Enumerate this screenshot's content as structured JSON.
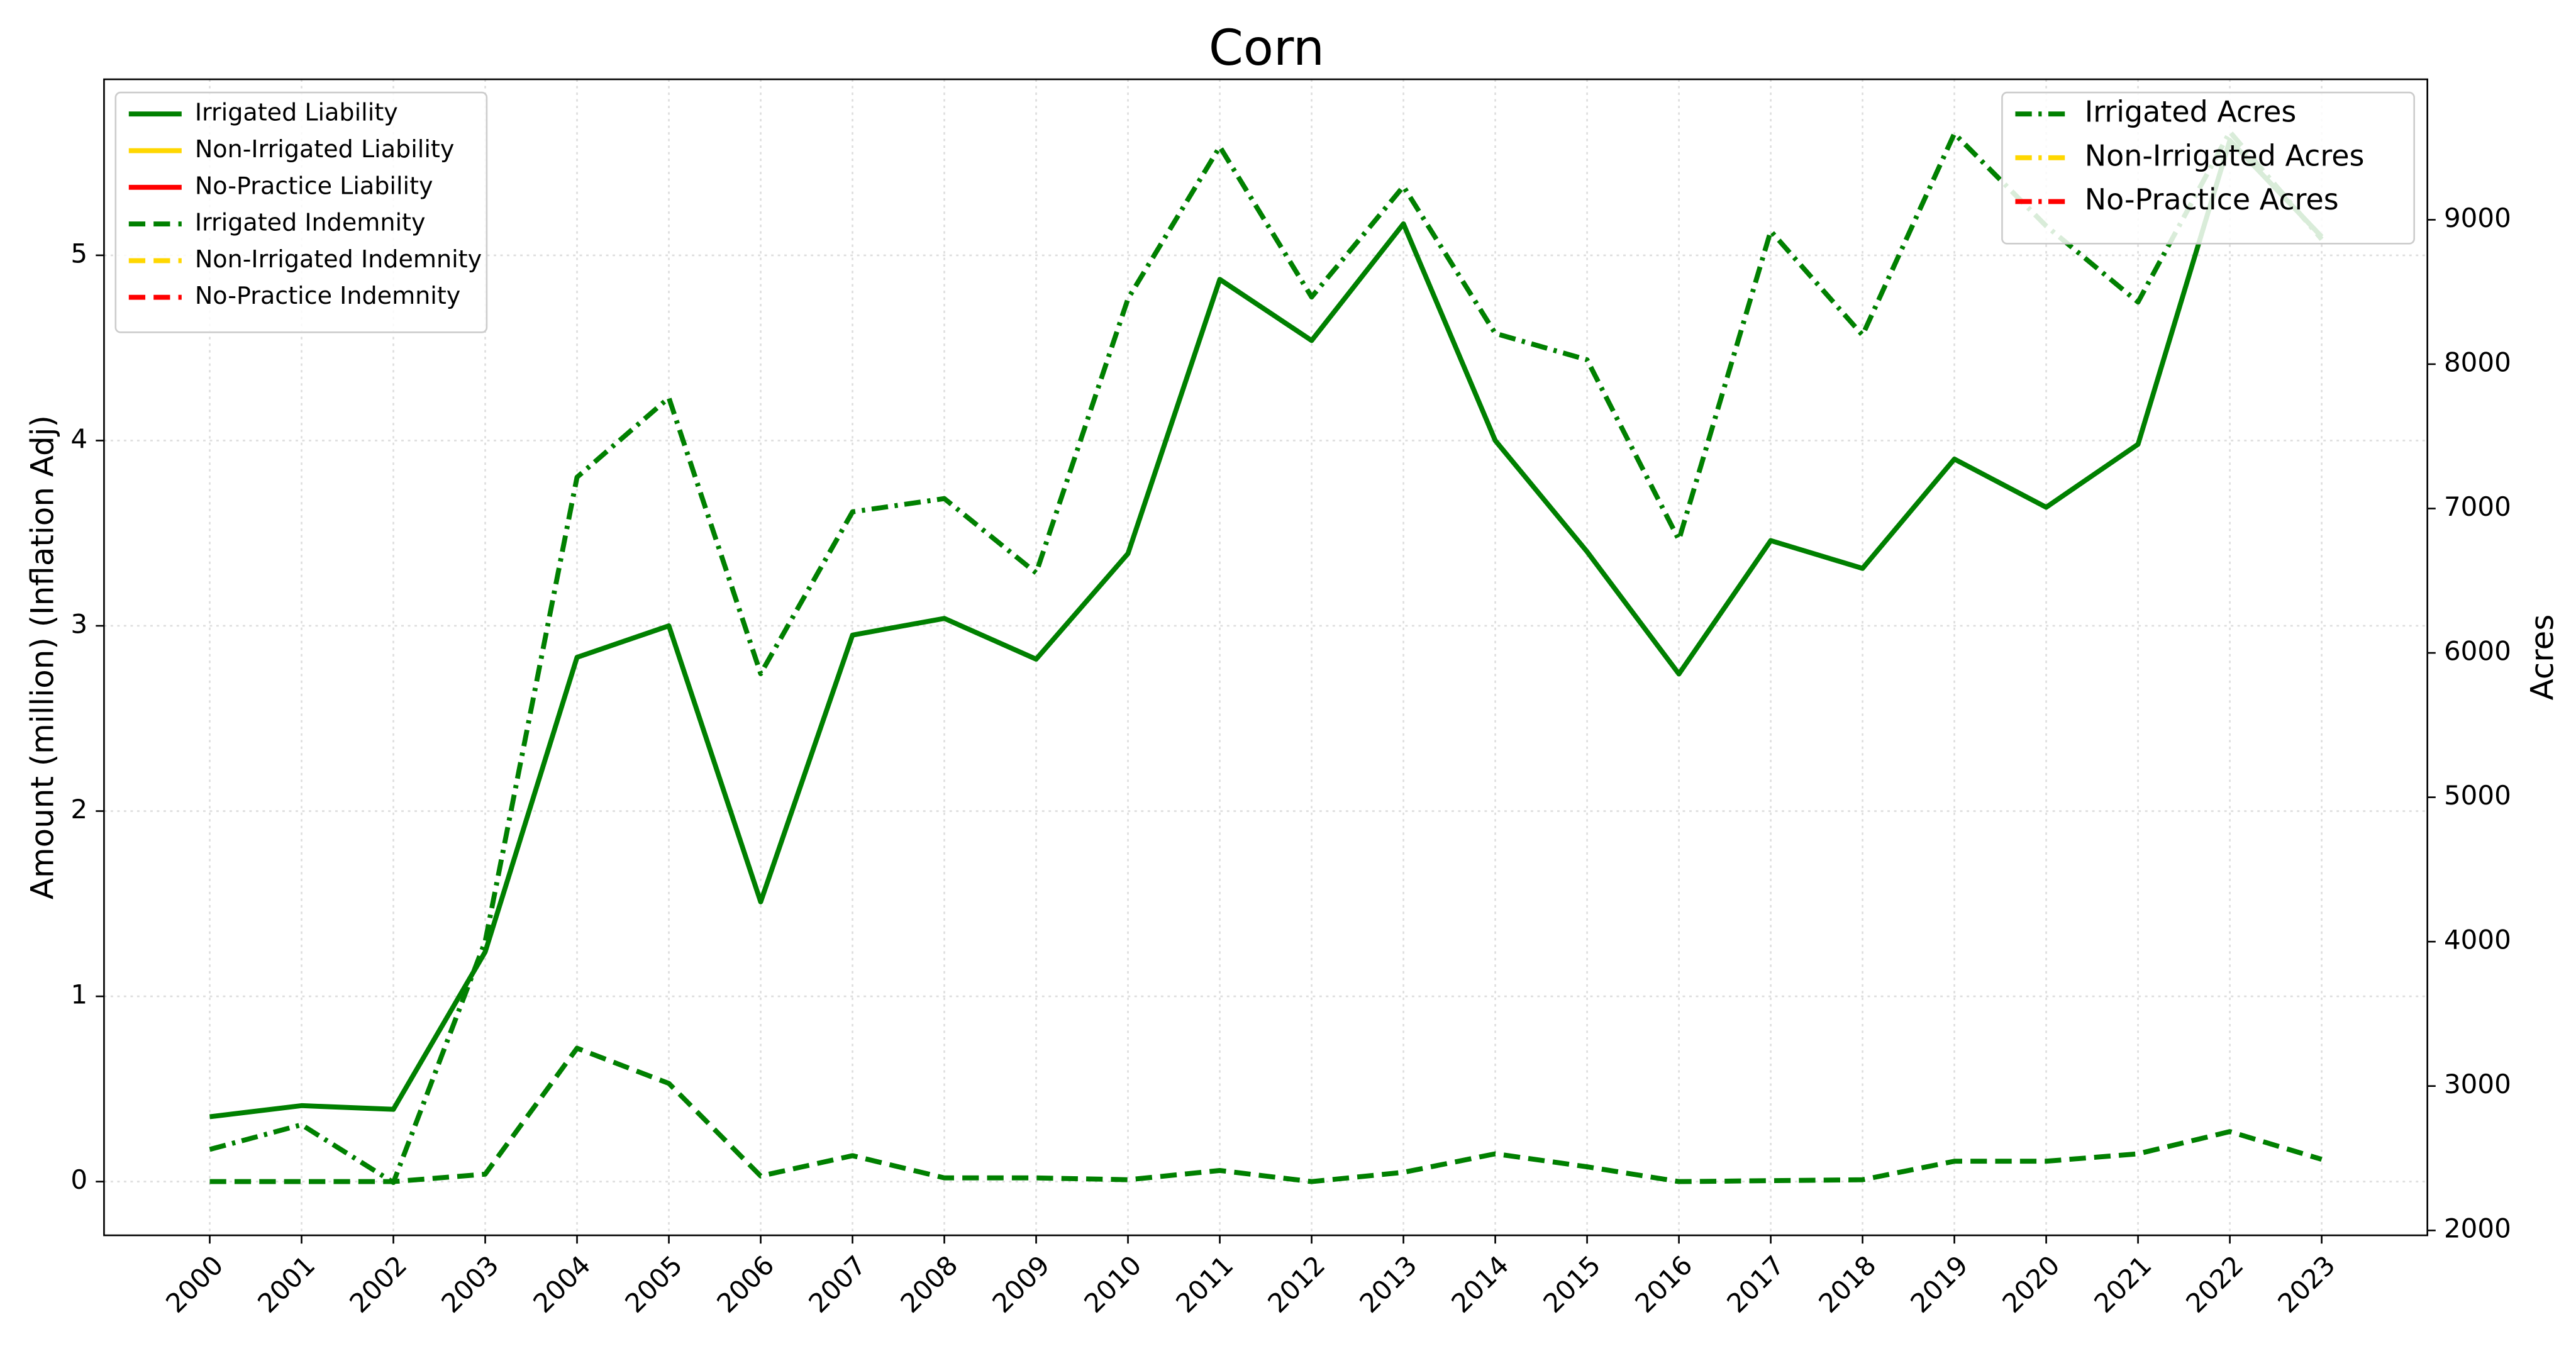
{
  "chart_data": {
    "type": "line",
    "title": "Corn",
    "ylabel": "Amount (million) (Inflation Adj)",
    "y2label": "Acres",
    "categories": [
      "2000",
      "2001",
      "2002",
      "2003",
      "2004",
      "2005",
      "2006",
      "2007",
      "2008",
      "2009",
      "2010",
      "2011",
      "2012",
      "2013",
      "2014",
      "2015",
      "2016",
      "2017",
      "2018",
      "2019",
      "2020",
      "2021",
      "2022",
      "2023"
    ],
    "ylim": [
      -0.29,
      5.95
    ],
    "yticks": [
      0,
      1,
      2,
      3,
      4,
      5
    ],
    "y2lim": [
      1966,
      9973
    ],
    "y2ticks": [
      2000,
      3000,
      4000,
      5000,
      6000,
      7000,
      8000,
      9000
    ],
    "grid": true,
    "legend": "upper left",
    "y2legend": "upper right",
    "series": [
      {
        "name": "Irrigated Liability",
        "color": "#008000",
        "style": "solid",
        "axis": "y",
        "values": [
          0.35,
          0.41,
          0.39,
          1.24,
          2.83,
          3.0,
          1.51,
          2.95,
          3.04,
          2.82,
          3.39,
          4.87,
          4.54,
          5.17,
          4.0,
          3.4,
          2.74,
          3.46,
          3.31,
          3.9,
          3.64,
          3.98,
          5.62,
          5.1
        ]
      },
      {
        "name": "Non-Irrigated Liability",
        "color": "#ffd700",
        "style": "solid",
        "axis": "y",
        "values": [
          null,
          null,
          null,
          null,
          null,
          null,
          null,
          null,
          null,
          null,
          null,
          null,
          null,
          null,
          null,
          null,
          null,
          null,
          null,
          null,
          null,
          null,
          null,
          null
        ]
      },
      {
        "name": "No-Practice Liability",
        "color": "#ff0000",
        "style": "solid",
        "axis": "y",
        "values": [
          null,
          null,
          null,
          null,
          null,
          null,
          null,
          null,
          null,
          null,
          null,
          null,
          null,
          null,
          null,
          null,
          null,
          null,
          null,
          null,
          null,
          null,
          null,
          null
        ]
      },
      {
        "name": "Irrigated Indemnity",
        "color": "#008000",
        "style": "dashed",
        "axis": "y",
        "values": [
          0,
          0,
          0,
          0.04,
          0.72,
          0.53,
          0.03,
          0.14,
          0.02,
          0.02,
          0.01,
          0.06,
          0,
          0.05,
          0.15,
          0.08,
          0,
          0.005,
          0.01,
          0.11,
          0.11,
          0.15,
          0.27,
          0.12
        ]
      },
      {
        "name": "Non-Irrigated Indemnity",
        "color": "#ffd700",
        "style": "dashed",
        "axis": "y",
        "values": [
          null,
          null,
          null,
          null,
          null,
          null,
          null,
          null,
          null,
          null,
          null,
          null,
          null,
          null,
          null,
          null,
          null,
          null,
          null,
          null,
          null,
          null,
          null,
          null
        ]
      },
      {
        "name": "No-Practice Indemnity",
        "color": "#ff0000",
        "style": "dashed",
        "axis": "y",
        "values": [
          null,
          null,
          null,
          null,
          null,
          null,
          null,
          null,
          null,
          null,
          null,
          null,
          null,
          null,
          null,
          null,
          null,
          null,
          null,
          null,
          null,
          null,
          null,
          null
        ]
      },
      {
        "name": "Irrigated Acres",
        "color": "#008000",
        "style": "dashdot",
        "axis": "y2",
        "values": [
          2561,
          2732,
          2332,
          4002,
          7217,
          7767,
          5856,
          6977,
          7069,
          6554,
          8453,
          9506,
          8465,
          9231,
          8213,
          8030,
          6783,
          8922,
          8201,
          9597,
          8957,
          8430,
          9609,
          8865
        ]
      },
      {
        "name": "Non-Irrigated Acres",
        "color": "#ffd700",
        "style": "dashdot",
        "axis": "y2",
        "values": [
          null,
          null,
          null,
          null,
          null,
          null,
          null,
          null,
          null,
          null,
          null,
          null,
          null,
          null,
          null,
          null,
          null,
          null,
          null,
          null,
          null,
          null,
          null,
          null
        ]
      },
      {
        "name": "No-Practice Acres",
        "color": "#ff0000",
        "style": "dashdot",
        "axis": "y2",
        "values": [
          null,
          null,
          null,
          null,
          null,
          null,
          null,
          null,
          null,
          null,
          null,
          null,
          null,
          null,
          null,
          null,
          null,
          null,
          null,
          null,
          null,
          null,
          null,
          null
        ]
      }
    ]
  }
}
